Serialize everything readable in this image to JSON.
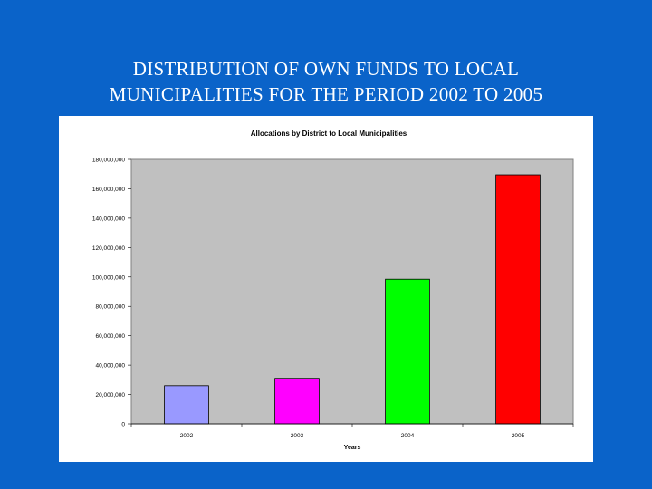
{
  "slide": {
    "title_line1": "DISTRIBUTION OF OWN FUNDS TO LOCAL",
    "title_line2": "MUNICIPALITIES FOR THE PERIOD 2002 TO 2005"
  },
  "colors": {
    "background": "#0a63c9",
    "plot_area": "#c0c0c0",
    "bar_2002": "#9999ff",
    "bar_2003": "#ff00ff",
    "bar_2004": "#00ff00",
    "bar_2005": "#ff0000"
  },
  "chart_data": {
    "type": "bar",
    "title": "Allocations by District to Local Municipalities",
    "xlabel": "Years",
    "ylabel": "",
    "categories": [
      "2002",
      "2003",
      "2004",
      "2005"
    ],
    "values": [
      26000000,
      31000000,
      98500000,
      169500000
    ],
    "bar_colors": [
      "#9999ff",
      "#ff00ff",
      "#00ff00",
      "#ff0000"
    ],
    "ylim": [
      0,
      180000000
    ],
    "yticks": [
      0,
      20000000,
      40000000,
      60000000,
      80000000,
      100000000,
      120000000,
      140000000,
      160000000,
      180000000
    ],
    "ytick_labels": [
      "0",
      "20,000,000",
      "40,000,000",
      "60,000,000",
      "80,000,000",
      "100,000,000",
      "120,000,000",
      "140,000,000",
      "160,000,000",
      "180,000,000"
    ],
    "grid": false,
    "legend": "none"
  }
}
